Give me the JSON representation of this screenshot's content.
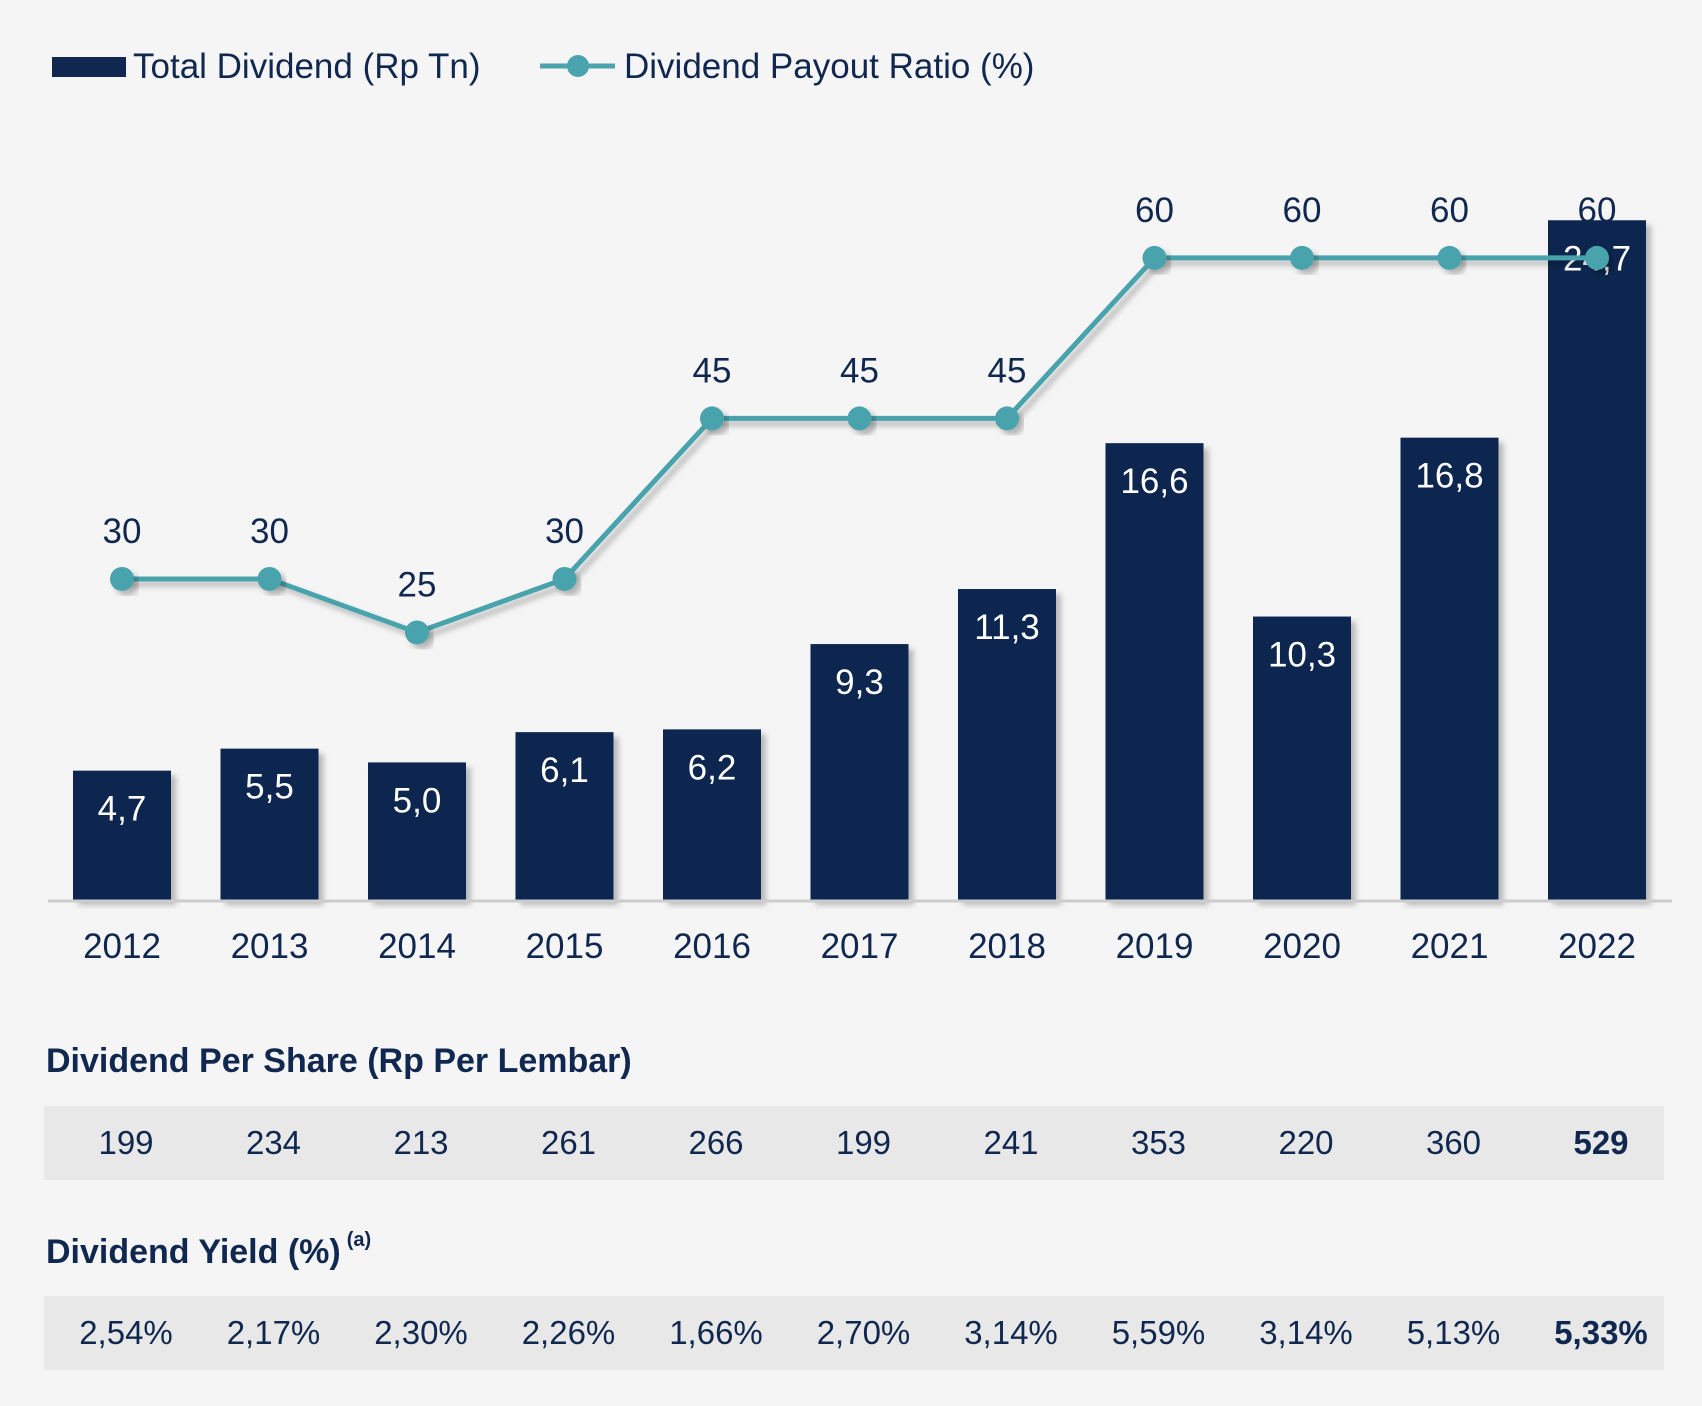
{
  "chart_data": {
    "type": "bar",
    "categories": [
      "2012",
      "2013",
      "2014",
      "2015",
      "2016",
      "2017",
      "2018",
      "2019",
      "2020",
      "2021",
      "2022"
    ],
    "series": [
      {
        "name": "Total Dividend (Rp Tn)",
        "chart_type": "bar",
        "values": [
          4.7,
          5.5,
          5.0,
          6.1,
          6.2,
          9.3,
          11.3,
          16.6,
          10.3,
          16.8,
          24.7
        ],
        "labels": [
          "4,7",
          "5,5",
          "5,0",
          "6,1",
          "6,2",
          "9,3",
          "11,3",
          "16,6",
          "10,3",
          "16,8",
          "24,7"
        ],
        "color": "#10284f"
      },
      {
        "name": "Dividend Payout Ratio (%)",
        "chart_type": "line",
        "values": [
          30,
          30,
          25,
          30,
          45,
          45,
          45,
          60,
          60,
          60,
          60
        ],
        "labels": [
          "30",
          "30",
          "25",
          "30",
          "45",
          "45",
          "45",
          "60",
          "60",
          "60",
          "60"
        ],
        "color": "#4aa3ad"
      }
    ],
    "bar_ylim": [
      0,
      25
    ],
    "line_ylim": [
      0,
      67
    ],
    "legend_position": "top-left",
    "grid": false
  },
  "dps": {
    "title": "Dividend Per Share (Rp Per Lembar)",
    "values": [
      "199",
      "234",
      "213",
      "261",
      "266",
      "199",
      "241",
      "353",
      "220",
      "360",
      "529"
    ]
  },
  "yield": {
    "title": "Dividend Yield (%)",
    "superscript": "(a)",
    "values": [
      "2,54%",
      "2,17%",
      "2,30%",
      "2,26%",
      "1,66%",
      "2,70%",
      "3,14%",
      "5,59%",
      "3,14%",
      "5,13%",
      "5,33%"
    ]
  },
  "colors": {
    "navy": "#10284f",
    "teal": "#4aa3ad",
    "axis": "#cccccc",
    "row_bg": "#e8e8e8"
  }
}
